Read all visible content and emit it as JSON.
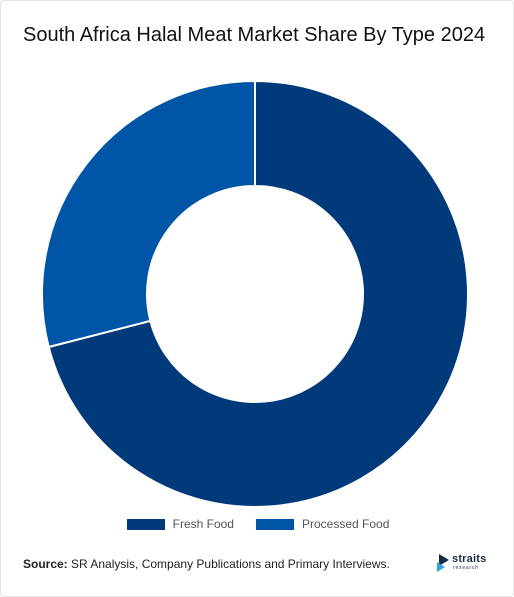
{
  "chart_data": {
    "type": "pie",
    "title": "South Africa Halal Meat Market Share By Type 2024",
    "categories": [
      "Fresh Food",
      "Processed Food"
    ],
    "values": [
      71,
      29
    ],
    "colors": [
      "#003a7a",
      "#0055a6"
    ],
    "donut": true,
    "legend_position": "bottom-center"
  },
  "legend": {
    "items": [
      {
        "label": "Fresh Food",
        "color": "#003a7a"
      },
      {
        "label": "Processed Food",
        "color": "#0055a6"
      }
    ]
  },
  "source": {
    "label": "Source:",
    "text": " SR Analysis, Company Publications and Primary Interviews."
  },
  "logo": {
    "name": "straits",
    "sub": "research",
    "icon": "straits-logo-icon"
  }
}
